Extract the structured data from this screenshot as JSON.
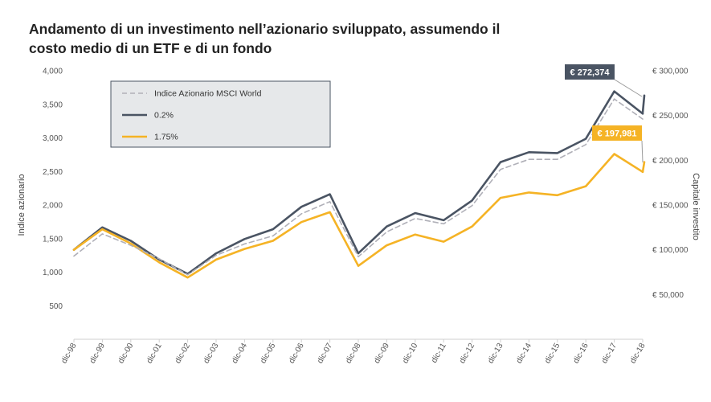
{
  "title_lines": [
    "Andamento di un investimento nell’azionario sviluppato, assumendo il",
    "costo medio di un ETF e di un fondo"
  ],
  "chart_data": {
    "type": "line",
    "categories": [
      "dic-98",
      "dic-99",
      "dic-00",
      "dic-01",
      "dic-02",
      "dic-03",
      "dic-04",
      "dic-05",
      "dic-06",
      "dic-07",
      "dic-08",
      "dic-09",
      "dic-10",
      "dic-11",
      "dic-12",
      "dic-13",
      "dic-14",
      "dic-15",
      "dic-16",
      "dic-17",
      "dic-18"
    ],
    "ylabel": "Indice azionario",
    "y2label": "Capitale investito",
    "ylim": [
      0,
      4000
    ],
    "y2lim": [
      0,
      300000
    ],
    "yticks": [
      "",
      "500",
      "1,000",
      "1,500",
      "2,000",
      "2,500",
      "3,000",
      "3,500",
      "4,000"
    ],
    "y2ticks": [
      "",
      "€ 50,000",
      "€ 100,000",
      "€ 150,000",
      "€ 200,000",
      "€ 250,000",
      "€ 300,000"
    ],
    "legend_position": "top-left",
    "series": [
      {
        "name": "Indice Azionario MSCI World",
        "axis": "left",
        "style": "dashed",
        "color": "#b0b0b8",
        "values": [
          1240,
          1570,
          1400,
          1200,
          960,
          1250,
          1420,
          1540,
          1870,
          2050,
          1230,
          1600,
          1800,
          1720,
          1990,
          2530,
          2680,
          2680,
          2900,
          3580,
          3280
        ]
      },
      {
        "name": "0.2%",
        "axis": "right",
        "style": "solid",
        "color": "#4a5463",
        "values": [
          100000,
          125000,
          110000,
          89000,
          73000,
          96000,
          112000,
          123000,
          148000,
          162000,
          96000,
          126000,
          141000,
          133000,
          155000,
          198000,
          209000,
          208000,
          224000,
          277000,
          252000
        ],
        "end_values": [
          253000,
          272374
        ],
        "callout": "€ 272,374"
      },
      {
        "name": "1.75%",
        "axis": "right",
        "style": "solid",
        "color": "#f5b325",
        "values": [
          100000,
          123000,
          107000,
          86000,
          69000,
          89000,
          101000,
          110000,
          131000,
          142000,
          82000,
          105000,
          117000,
          109000,
          126000,
          158000,
          164000,
          161000,
          171000,
          207000,
          187000
        ],
        "end_values": [
          187000,
          197981
        ],
        "callout": "€ 197,981"
      }
    ]
  }
}
